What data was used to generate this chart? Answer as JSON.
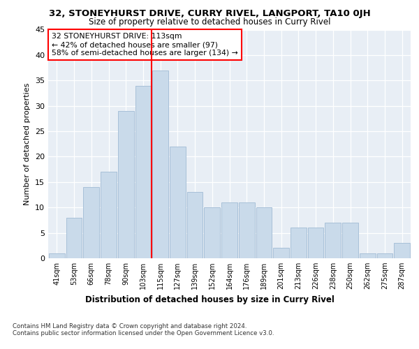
{
  "title": "32, STONEYHURST DRIVE, CURRY RIVEL, LANGPORT, TA10 0JH",
  "subtitle": "Size of property relative to detached houses in Curry Rivel",
  "xlabel": "Distribution of detached houses by size in Curry Rivel",
  "ylabel": "Number of detached properties",
  "bar_labels": [
    "41sqm",
    "53sqm",
    "66sqm",
    "78sqm",
    "90sqm",
    "103sqm",
    "115sqm",
    "127sqm",
    "139sqm",
    "152sqm",
    "164sqm",
    "176sqm",
    "189sqm",
    "201sqm",
    "213sqm",
    "226sqm",
    "238sqm",
    "250sqm",
    "262sqm",
    "275sqm",
    "287sqm"
  ],
  "bar_values": [
    1,
    8,
    14,
    17,
    29,
    34,
    37,
    22,
    13,
    10,
    11,
    11,
    10,
    2,
    6,
    6,
    7,
    7,
    1,
    1,
    3
  ],
  "bar_color": "#c9daea",
  "bar_edge_color": "#a8c0d8",
  "vline_x": 5.5,
  "vline_color": "red",
  "annotation_text": "32 STONEYHURST DRIVE: 113sqm\n← 42% of detached houses are smaller (97)\n58% of semi-detached houses are larger (134) →",
  "annotation_box_color": "white",
  "annotation_box_edge": "red",
  "ylim": [
    0,
    45
  ],
  "yticks": [
    0,
    5,
    10,
    15,
    20,
    25,
    30,
    35,
    40,
    45
  ],
  "background_color": "#e8eef5",
  "grid_color": "white",
  "footer": "Contains HM Land Registry data © Crown copyright and database right 2024.\nContains public sector information licensed under the Open Government Licence v3.0."
}
